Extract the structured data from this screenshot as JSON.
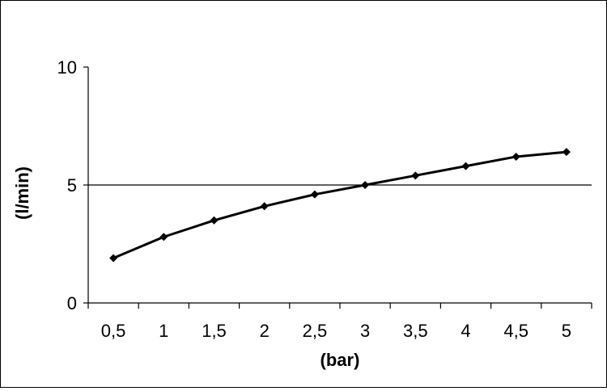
{
  "chart_data": {
    "type": "line",
    "title": "",
    "xlabel": "(bar)",
    "ylabel": "(l/min)",
    "categories": [
      "0,5",
      "1",
      "1,5",
      "2",
      "2,5",
      "3",
      "3,5",
      "4",
      "4,5",
      "5"
    ],
    "x": [
      0.5,
      1,
      1.5,
      2,
      2.5,
      3,
      3.5,
      4,
      4.5,
      5
    ],
    "series": [
      {
        "values": [
          1.9,
          2.8,
          3.5,
          4.1,
          4.6,
          5.0,
          5.4,
          5.8,
          6.2,
          6.4
        ]
      }
    ],
    "ylim": [
      0,
      10
    ],
    "yticks": [
      0,
      5,
      10
    ],
    "y_tick_labels": [
      "0",
      "5",
      "10"
    ],
    "gridlines": [
      5
    ],
    "grid": "horizontal line at 5",
    "legend": "none",
    "marker": "diamond",
    "colors": {
      "line": "#000000",
      "axis": "#000000",
      "background": "#ffffff"
    }
  }
}
